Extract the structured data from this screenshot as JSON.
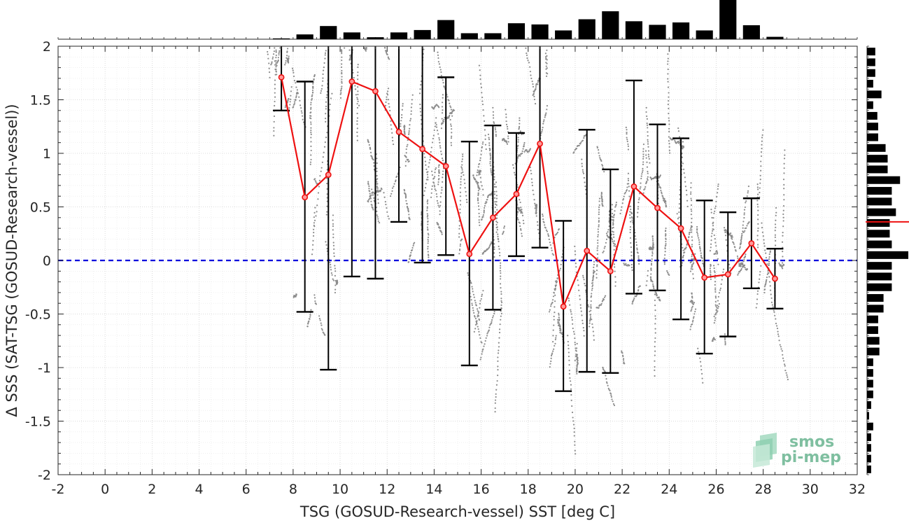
{
  "chart_data": {
    "type": "scatter",
    "xlabel": "TSG (GOSUD-Research-vessel) SST [deg C]",
    "ylabel": "Δ SSS (SAT-TSG (GOSUD-Research-vessel))",
    "xlim": [
      -2,
      32
    ],
    "ylim": [
      -2,
      2
    ],
    "xticks": [
      "-2",
      "0",
      "2",
      "4",
      "6",
      "8",
      "10",
      "12",
      "14",
      "16",
      "18",
      "20",
      "22",
      "24",
      "26",
      "28",
      "30",
      "32"
    ],
    "yticks": [
      "2",
      "1.5",
      "1",
      "0.5",
      "0",
      "-0.5",
      "-1",
      "-1.5",
      "-2"
    ],
    "grid": true,
    "zero_line": {
      "y": 0,
      "color": "#0000dd",
      "style": "dashed"
    },
    "binned_mean": {
      "color": "#ee1111",
      "x": [
        7.5,
        8.5,
        9.5,
        10.5,
        11.5,
        12.5,
        13.5,
        14.5,
        15.5,
        16.5,
        17.5,
        18.5,
        19.5,
        20.5,
        21.5,
        22.5,
        23.5,
        24.5,
        25.5,
        26.5,
        27.5,
        28.5
      ],
      "mean": [
        1.71,
        0.59,
        0.8,
        1.67,
        1.58,
        1.2,
        1.04,
        0.88,
        0.06,
        0.4,
        0.62,
        1.09,
        -0.43,
        0.09,
        -0.1,
        0.69,
        0.49,
        0.3,
        -0.16,
        -0.13,
        0.16,
        -0.17
      ],
      "lower": [
        1.4,
        -0.48,
        -1.02,
        -0.15,
        -0.17,
        0.36,
        -0.02,
        0.05,
        -0.98,
        -0.46,
        0.04,
        0.12,
        -1.22,
        -1.04,
        -1.05,
        -0.31,
        -0.28,
        -0.55,
        -0.87,
        -0.71,
        -0.26,
        -0.45
      ],
      "upper": [
        2.02,
        1.67,
        2.05,
        2.05,
        2.05,
        2.05,
        2.05,
        1.71,
        1.11,
        1.26,
        1.19,
        2.05,
        0.37,
        1.22,
        0.85,
        1.68,
        1.27,
        1.14,
        0.56,
        0.45,
        0.58,
        0.11
      ]
    },
    "scatter_color": "#8c8c8c",
    "top_histogram": {
      "bins": [
        7.5,
        8.5,
        9.5,
        10.5,
        11.5,
        12.5,
        13.5,
        14.5,
        15.5,
        16.5,
        17.5,
        18.5,
        19.5,
        20.5,
        21.5,
        22.5,
        23.5,
        24.5,
        25.5,
        26.5,
        27.5,
        28.5
      ],
      "counts": [
        0.02,
        0.12,
        0.33,
        0.17,
        0.05,
        0.17,
        0.23,
        0.48,
        0.15,
        0.15,
        0.4,
        0.37,
        0.22,
        0.5,
        0.7,
        0.45,
        0.36,
        0.42,
        0.22,
        1.0,
        0.35,
        0.06
      ]
    },
    "right_histogram": {
      "bins": [
        1.95,
        1.85,
        1.75,
        1.65,
        1.55,
        1.45,
        1.35,
        1.25,
        1.15,
        1.05,
        0.95,
        0.85,
        0.75,
        0.65,
        0.55,
        0.45,
        0.35,
        0.25,
        0.15,
        0.05,
        -0.05,
        -0.15,
        -0.25,
        -0.35,
        -0.45,
        -0.55,
        -0.65,
        -0.75,
        -0.85,
        -0.95,
        -1.05,
        -1.15,
        -1.25,
        -1.35,
        -1.45,
        -1.55,
        -1.65,
        -1.75,
        -1.85,
        -1.95
      ],
      "counts": [
        0.2,
        0.2,
        0.2,
        0.15,
        0.35,
        0.15,
        0.25,
        0.27,
        0.27,
        0.45,
        0.5,
        0.5,
        0.8,
        0.6,
        0.6,
        0.7,
        0.55,
        0.55,
        0.6,
        1.0,
        0.6,
        0.6,
        0.6,
        0.4,
        0.4,
        0.27,
        0.27,
        0.3,
        0.3,
        0.15,
        0.15,
        0.15,
        0.15,
        0.1,
        0.05,
        0.15,
        0.1,
        0.1,
        0.1,
        0.1
      ],
      "median_line": {
        "y": 0.36,
        "color": "#ee1111"
      }
    }
  },
  "logo": {
    "line1": "smos",
    "line2": "pi-mep",
    "color": "#7fbfa0"
  }
}
